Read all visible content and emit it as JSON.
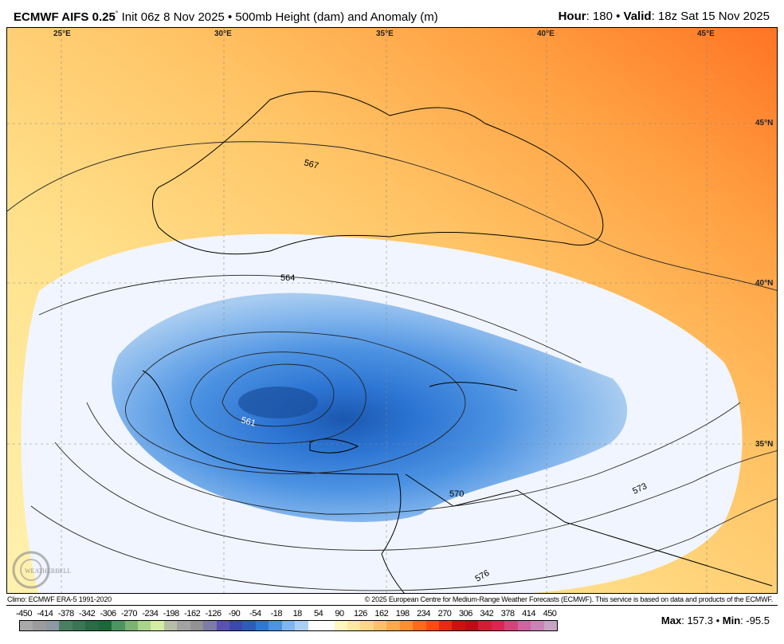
{
  "header": {
    "model": "ECMWF AIFS 0.25",
    "degree": "°",
    "init": " Init 06z 8 Nov 2025 • 500mb Height (dam) and Anomaly (m)",
    "hour_label": "Hour",
    "hour_value": ": 180 • ",
    "valid_label": "Valid",
    "valid_value": ": 18z Sat 15 Nov 2025"
  },
  "map": {
    "longitude_labels": [
      "25°E",
      "30°E",
      "35°E",
      "40°E",
      "45°E"
    ],
    "latitude_labels": [
      "45°N",
      "40°N",
      "35°N"
    ],
    "contour_labels": [
      "567",
      "564",
      "561",
      "570",
      "573",
      "576"
    ],
    "logo_text": "WEATHERBELL"
  },
  "footer": {
    "climo": "Climo: ECMWF ERA-5 1991-2020",
    "copyright": "© 2025 European Centre for Medium-Range Weather Forecasts (ECMWF). This service is based on data and products of the ECMWF.",
    "max_label": "Max",
    "max_value": ": 157.3 • ",
    "min_label": "Min",
    "min_value": ": -95.5"
  },
  "colorbar": {
    "labels": [
      "-450",
      "-414",
      "-378",
      "-342",
      "-306",
      "-270",
      "-234",
      "-198",
      "-162",
      "-126",
      "-90",
      "-54",
      "-18",
      "18",
      "54",
      "90",
      "126",
      "162",
      "198",
      "234",
      "270",
      "306",
      "342",
      "378",
      "414",
      "450"
    ],
    "colors": [
      "#a9a9a9",
      "#9c9c9c",
      "#8d9aa4",
      "#4a8060",
      "#3c7456",
      "#2a6a44",
      "#1d683a",
      "#4e9460",
      "#7cb272",
      "#a8d48e",
      "#d4eca4",
      "#b6bea6",
      "#a2a2a2",
      "#929292",
      "#7c7ca6",
      "#5a52b2",
      "#3c48b0",
      "#2e5cb8",
      "#2c78d2",
      "#4c94e2",
      "#80b6ee",
      "#aacff2",
      "#ffffff",
      "#ffffff",
      "#fff6c0",
      "#ffe8a2",
      "#ffd684",
      "#ffc06a",
      "#ffa84c",
      "#ff8e30",
      "#ff6a1a",
      "#ff4a10",
      "#ea2a0e",
      "#d01010",
      "#c40818",
      "#d41c34",
      "#dc2452",
      "#d44478",
      "#d064a0",
      "#c884b4",
      "#c8a4c4"
    ]
  }
}
